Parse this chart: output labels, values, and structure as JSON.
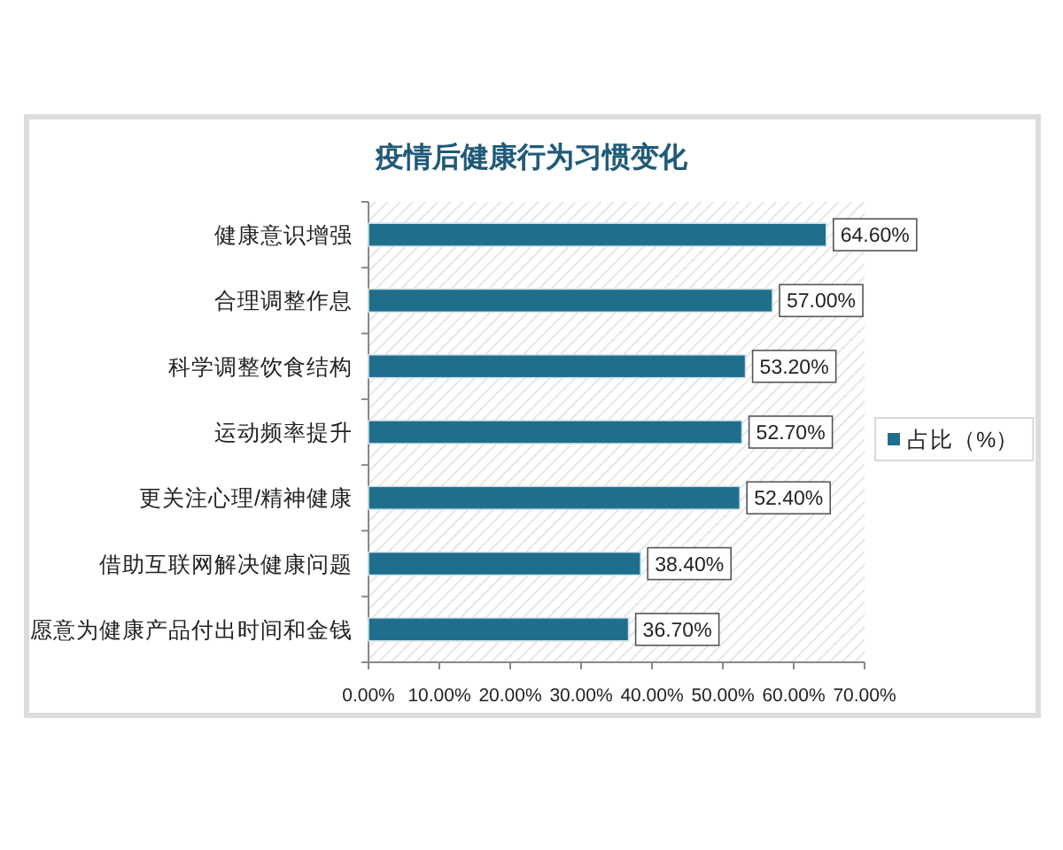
{
  "chart_data": {
    "type": "bar",
    "orientation": "horizontal",
    "title": "疫情后健康行为习惯变化",
    "categories": [
      "健康意识增强",
      "合理调整作息",
      "科学调整饮食结构",
      "运动频率提升",
      "更关注心理/精神健康",
      "借助互联网解决健康问题",
      "愿意为健康产品付出时间和金钱"
    ],
    "series": [
      {
        "name": "占比（%）",
        "color": "#1f6e8c",
        "values": [
          64.6,
          57.0,
          53.2,
          52.7,
          52.4,
          38.4,
          36.7
        ],
        "value_labels": [
          "64.60%",
          "57.00%",
          "53.20%",
          "52.70%",
          "52.40%",
          "38.40%",
          "36.70%"
        ]
      }
    ],
    "xlim": [
      0,
      70
    ],
    "xticks": [
      {
        "value": 0,
        "label": "0.00%"
      },
      {
        "value": 10,
        "label": "10.00%"
      },
      {
        "value": 20,
        "label": "20.00%"
      },
      {
        "value": 30,
        "label": "30.00%"
      },
      {
        "value": 40,
        "label": "40.00%"
      },
      {
        "value": 50,
        "label": "50.00%"
      },
      {
        "value": 60,
        "label": "60.00%"
      },
      {
        "value": 70,
        "label": "70.00%"
      }
    ],
    "legend": "right"
  }
}
